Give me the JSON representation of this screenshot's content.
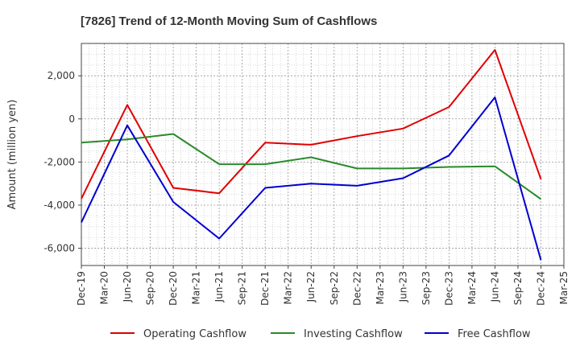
{
  "chart_data": {
    "type": "line",
    "title": "[7826]  Trend of 12-Month Moving Sum of Cashflows",
    "xlabel": "",
    "ylabel": "Amount (million yen)",
    "categories": [
      "Dec-19",
      "Mar-20",
      "Jun-20",
      "Sep-20",
      "Dec-20",
      "Mar-21",
      "Jun-21",
      "Sep-21",
      "Dec-21",
      "Mar-22",
      "Jun-22",
      "Sep-22",
      "Dec-22",
      "Mar-23",
      "Jun-23",
      "Sep-23",
      "Dec-23",
      "Mar-24",
      "Jun-24",
      "Sep-24",
      "Dec-24",
      "Mar-25"
    ],
    "ylim": [
      -6800,
      3500
    ],
    "yticks": [
      2000,
      0,
      -2000,
      -4000,
      -6000
    ],
    "ytick_labels": [
      "2,000",
      "0",
      "-2,000",
      "-4,000",
      "-6,000"
    ],
    "grid": true,
    "legend_position": "bottom",
    "series": [
      {
        "name": "Operating Cashflow",
        "color": "#e00000",
        "points": [
          [
            0,
            -3700
          ],
          [
            2,
            650
          ],
          [
            4,
            -3200
          ],
          [
            6,
            -3450
          ],
          [
            8,
            -1100
          ],
          [
            10,
            -1200
          ],
          [
            12,
            -800
          ],
          [
            14,
            -450
          ],
          [
            16,
            550
          ],
          [
            18,
            3200
          ],
          [
            20,
            -2800
          ]
        ]
      },
      {
        "name": "Investing Cashflow",
        "color": "#2a8a2a",
        "points": [
          [
            0,
            -1100
          ],
          [
            2,
            -950
          ],
          [
            4,
            -700
          ],
          [
            6,
            -2100
          ],
          [
            8,
            -2100
          ],
          [
            10,
            -1780
          ],
          [
            12,
            -2300
          ],
          [
            14,
            -2300
          ],
          [
            16,
            -2230
          ],
          [
            18,
            -2200
          ],
          [
            20,
            -3720
          ]
        ]
      },
      {
        "name": "Free Cashflow",
        "color": "#0000d0",
        "points": [
          [
            0,
            -4800
          ],
          [
            2,
            -300
          ],
          [
            4,
            -3850
          ],
          [
            6,
            -5550
          ],
          [
            8,
            -3200
          ],
          [
            10,
            -3000
          ],
          [
            12,
            -3100
          ],
          [
            14,
            -2750
          ],
          [
            16,
            -1700
          ],
          [
            18,
            1000
          ],
          [
            20,
            -6550
          ]
        ]
      }
    ]
  }
}
